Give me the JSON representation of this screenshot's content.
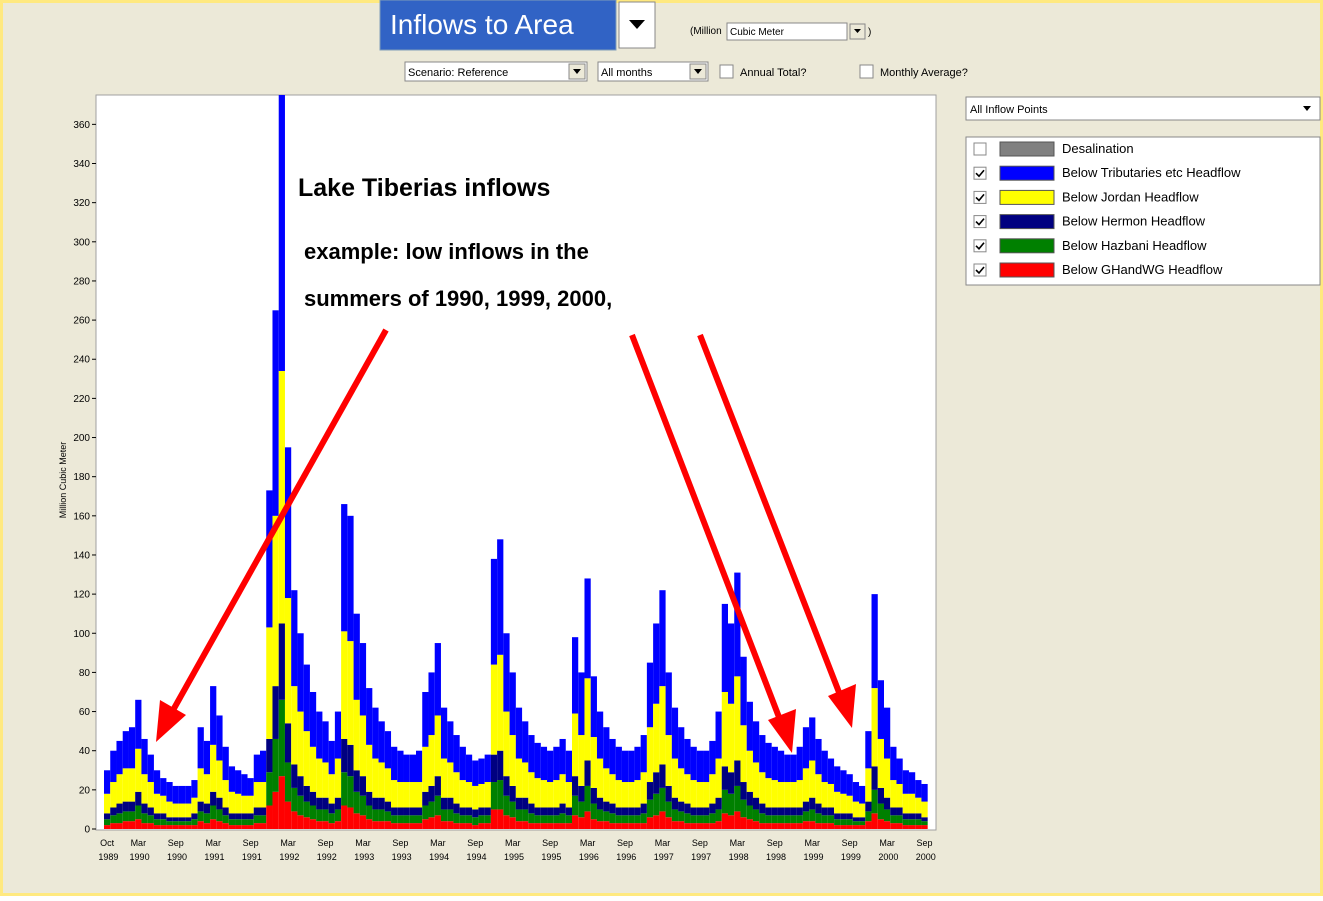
{
  "toolbar": {
    "selector": "Inflows to Area",
    "unit_prefix": "(Million",
    "unit": "Cubic Meter",
    "unit_suffix": ")",
    "scenario": "Scenario: Reference",
    "months": "All months",
    "annual_total": "Annual Total?",
    "monthly_average": "Monthly Average?",
    "points": "All Inflow Points"
  },
  "annotation": {
    "title": "Lake Tiberias inflows",
    "lines": [
      "example: low inflows in the",
      "summers of 1990, 1999, 2000,"
    ]
  },
  "chart_data": {
    "type": "stacked_bar",
    "y_label": "Million Cubic Meter",
    "ylim": [
      0,
      375
    ],
    "yticks": [
      0,
      20,
      40,
      60,
      80,
      100,
      120,
      140,
      160,
      180,
      200,
      220,
      240,
      260,
      280,
      300,
      320,
      340,
      360
    ],
    "categories": [
      "Oct 1989",
      null,
      null,
      null,
      null,
      "Mar 1990",
      null,
      null,
      null,
      null,
      null,
      "Sep 1990",
      null,
      null,
      null,
      null,
      null,
      "Mar 1991",
      null,
      null,
      null,
      null,
      null,
      "Sep 1991",
      null,
      null,
      null,
      null,
      null,
      "Mar 1992",
      null,
      null,
      null,
      null,
      null,
      "Sep 1992",
      null,
      null,
      null,
      null,
      null,
      "Mar 1993",
      null,
      null,
      null,
      null,
      null,
      "Sep 1993",
      null,
      null,
      null,
      null,
      null,
      "Mar 1994",
      null,
      null,
      null,
      null,
      null,
      "Sep 1994",
      null,
      null,
      null,
      null,
      null,
      "Mar 1995",
      null,
      null,
      null,
      null,
      null,
      "Sep 1995",
      null,
      null,
      null,
      null,
      null,
      "Mar 1996",
      null,
      null,
      null,
      null,
      null,
      "Sep 1996",
      null,
      null,
      null,
      null,
      null,
      "Mar 1997",
      null,
      null,
      null,
      null,
      null,
      "Sep 1997",
      null,
      null,
      null,
      null,
      null,
      "Mar 1998",
      null,
      null,
      null,
      null,
      null,
      "Sep 1998",
      null,
      null,
      null,
      null,
      null,
      "Mar 1999",
      null,
      null,
      null,
      null,
      null,
      "Sep 1999",
      null,
      null,
      null,
      null,
      null,
      "Mar 2000",
      null,
      null,
      null,
      null,
      null,
      "Sep 2000"
    ],
    "unchecked_series": [
      {
        "name": "Desalination",
        "color": "#808080"
      }
    ],
    "series": [
      {
        "name": "Below Tributaries etc Headflow",
        "color": "#0000ff",
        "values": [
          12,
          16,
          17,
          19,
          21,
          25,
          18,
          14,
          12,
          9,
          10,
          9,
          9,
          9,
          9,
          21,
          17,
          30,
          23,
          17,
          13,
          12,
          11,
          9,
          14,
          16,
          70,
          105,
          156,
          77,
          49,
          40,
          34,
          28,
          24,
          21,
          17,
          24,
          65,
          64,
          44,
          37,
          29,
          26,
          21,
          19,
          17,
          16,
          14,
          14,
          16,
          28,
          32,
          37,
          26,
          21,
          19,
          17,
          14,
          13,
          13,
          14,
          54,
          59,
          40,
          32,
          26,
          21,
          19,
          18,
          17,
          16,
          17,
          18,
          16,
          39,
          32,
          51,
          31,
          24,
          21,
          18,
          17,
          16,
          16,
          17,
          19,
          33,
          41,
          49,
          32,
          26,
          21,
          18,
          17,
          16,
          16,
          17,
          24,
          45,
          41,
          53,
          35,
          25,
          21,
          19,
          18,
          17,
          16,
          14,
          14,
          17,
          21,
          22,
          18,
          16,
          13,
          13,
          12,
          11,
          10,
          9,
          19,
          48,
          30,
          26,
          17,
          13,
          12,
          11,
          9,
          9
        ]
      },
      {
        "name": "Below Jordan Headflow",
        "color": "#ffff00",
        "values": [
          10,
          13,
          15,
          17,
          17,
          22,
          15,
          13,
          10,
          9,
          8,
          7,
          7,
          7,
          8,
          17,
          15,
          24,
          19,
          14,
          11,
          10,
          9,
          9,
          13,
          13,
          57,
          87,
          129,
          64,
          40,
          33,
          28,
          23,
          20,
          18,
          15,
          20,
          55,
          53,
          36,
          31,
          24,
          20,
          18,
          17,
          14,
          13,
          13,
          13,
          13,
          23,
          26,
          31,
          20,
          18,
          16,
          14,
          13,
          12,
          12,
          13,
          46,
          49,
          33,
          26,
          20,
          18,
          16,
          15,
          14,
          13,
          14,
          15,
          13,
          32,
          26,
          42,
          26,
          20,
          17,
          15,
          14,
          13,
          13,
          14,
          16,
          28,
          35,
          40,
          26,
          20,
          17,
          15,
          14,
          13,
          13,
          15,
          20,
          38,
          35,
          43,
          29,
          21,
          18,
          16,
          15,
          14,
          13,
          13,
          13,
          14,
          17,
          19,
          15,
          13,
          12,
          11,
          10,
          9,
          8,
          7,
          17,
          40,
          25,
          20,
          14,
          12,
          10,
          10,
          8,
          8
        ]
      },
      {
        "name": "Below Hermon Headflow",
        "color": "#000080",
        "values": [
          3,
          4,
          5,
          5,
          5,
          7,
          5,
          4,
          3,
          3,
          2,
          2,
          2,
          2,
          3,
          5,
          5,
          7,
          6,
          4,
          3,
          3,
          3,
          3,
          4,
          4,
          17,
          27,
          39,
          20,
          12,
          10,
          8,
          7,
          6,
          6,
          5,
          6,
          17,
          16,
          11,
          10,
          7,
          6,
          6,
          5,
          4,
          4,
          4,
          4,
          4,
          7,
          8,
          10,
          6,
          6,
          5,
          4,
          4,
          4,
          4,
          4,
          14,
          15,
          10,
          8,
          6,
          6,
          5,
          4,
          4,
          4,
          4,
          5,
          4,
          10,
          8,
          13,
          8,
          6,
          5,
          5,
          4,
          4,
          4,
          4,
          5,
          9,
          11,
          12,
          8,
          6,
          5,
          5,
          4,
          4,
          4,
          5,
          6,
          12,
          11,
          13,
          9,
          7,
          6,
          5,
          4,
          4,
          4,
          4,
          4,
          4,
          5,
          6,
          5,
          4,
          4,
          3,
          3,
          3,
          2,
          2,
          5,
          12,
          8,
          6,
          4,
          4,
          3,
          3,
          3,
          2
        ]
      },
      {
        "name": "Below Hazbani Headflow",
        "color": "#008000",
        "values": [
          3,
          4,
          5,
          5,
          5,
          7,
          5,
          4,
          3,
          3,
          2,
          2,
          2,
          2,
          3,
          5,
          5,
          7,
          6,
          4,
          3,
          3,
          3,
          3,
          4,
          4,
          17,
          27,
          39,
          20,
          12,
          10,
          8,
          7,
          6,
          6,
          5,
          6,
          17,
          16,
          11,
          10,
          7,
          6,
          6,
          5,
          4,
          4,
          4,
          4,
          4,
          7,
          8,
          10,
          6,
          6,
          5,
          4,
          4,
          4,
          4,
          4,
          14,
          15,
          10,
          8,
          6,
          6,
          5,
          4,
          4,
          4,
          4,
          5,
          4,
          10,
          8,
          13,
          8,
          6,
          5,
          5,
          4,
          4,
          4,
          4,
          5,
          9,
          11,
          12,
          8,
          6,
          5,
          5,
          4,
          4,
          4,
          5,
          6,
          12,
          11,
          13,
          9,
          7,
          6,
          5,
          4,
          4,
          4,
          4,
          4,
          4,
          5,
          6,
          5,
          4,
          4,
          3,
          3,
          3,
          2,
          2,
          5,
          12,
          8,
          6,
          4,
          4,
          3,
          3,
          3,
          2
        ]
      },
      {
        "name": "Below GHandWG Headflow",
        "color": "#ff0000",
        "values": [
          2,
          3,
          3,
          4,
          4,
          5,
          3,
          3,
          2,
          2,
          2,
          2,
          2,
          2,
          2,
          4,
          3,
          5,
          4,
          3,
          2,
          2,
          2,
          2,
          3,
          3,
          12,
          19,
          27,
          14,
          9,
          7,
          6,
          5,
          4,
          4,
          3,
          4,
          12,
          11,
          8,
          7,
          5,
          4,
          4,
          4,
          3,
          3,
          3,
          3,
          3,
          5,
          6,
          7,
          4,
          4,
          3,
          3,
          3,
          2,
          3,
          3,
          10,
          10,
          7,
          6,
          4,
          4,
          3,
          3,
          3,
          3,
          3,
          3,
          3,
          7,
          6,
          9,
          5,
          4,
          4,
          3,
          3,
          3,
          3,
          3,
          3,
          6,
          7,
          9,
          6,
          4,
          4,
          3,
          3,
          3,
          3,
          3,
          4,
          8,
          7,
          9,
          6,
          5,
          4,
          3,
          3,
          3,
          3,
          3,
          3,
          3,
          4,
          4,
          3,
          3,
          3,
          2,
          2,
          2,
          2,
          2,
          4,
          8,
          5,
          4,
          3,
          3,
          2,
          2,
          2,
          2
        ]
      }
    ]
  }
}
